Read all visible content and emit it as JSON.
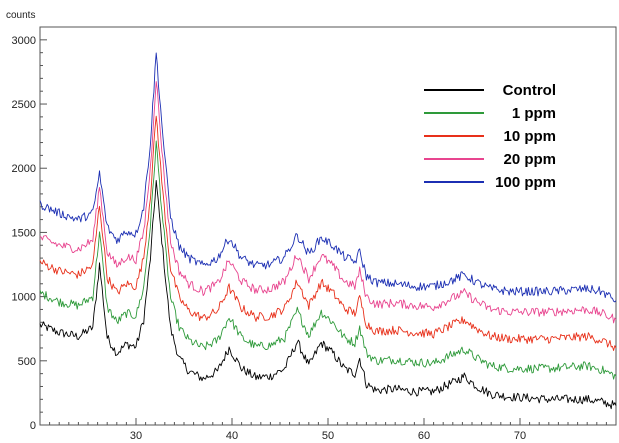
{
  "chart_data": {
    "type": "line",
    "ylabel": "counts",
    "xlabel": "",
    "xlim": [
      20,
      80
    ],
    "ylim": [
      0,
      3100
    ],
    "x_ticks": [
      30,
      40,
      50,
      60,
      70
    ],
    "y_ticks": [
      0,
      500,
      1000,
      1500,
      2000,
      2500,
      3000
    ],
    "grid": false,
    "legend_placement": "top-right",
    "x": [
      20,
      22,
      24,
      25.5,
      26.2,
      27,
      28,
      29,
      30,
      30.8,
      31.5,
      32.1,
      32.8,
      33.6,
      34.5,
      35.5,
      37,
      38.5,
      39.7,
      41,
      42.5,
      44,
      45.5,
      46.8,
      48,
      49.3,
      50.5,
      51.7,
      52.8,
      53.3,
      54,
      55,
      57,
      59,
      61,
      63,
      64.2,
      65.5,
      67,
      69,
      71,
      73,
      75,
      77,
      78.5,
      80
    ],
    "series": [
      {
        "name": "Control",
        "color": "#000000",
        "values": [
          780,
          720,
          690,
          760,
          1250,
          680,
          560,
          630,
          610,
          820,
          1300,
          1900,
          1350,
          750,
          520,
          420,
          360,
          420,
          600,
          440,
          370,
          380,
          440,
          650,
          460,
          640,
          560,
          440,
          400,
          520,
          320,
          270,
          280,
          260,
          260,
          330,
          380,
          300,
          240,
          220,
          210,
          200,
          200,
          200,
          180,
          150
        ]
      },
      {
        "name": "1 ppm",
        "color": "#2e9a3a",
        "values": [
          1030,
          960,
          930,
          1000,
          1500,
          920,
          800,
          870,
          850,
          1070,
          1560,
          2200,
          1580,
          990,
          760,
          660,
          600,
          660,
          840,
          680,
          610,
          620,
          680,
          890,
          700,
          880,
          800,
          680,
          640,
          760,
          560,
          500,
          510,
          490,
          480,
          550,
          590,
          520,
          460,
          440,
          440,
          440,
          450,
          460,
          430,
          380
        ]
      },
      {
        "name": "10 ppm",
        "color": "#e8301a",
        "values": [
          1270,
          1200,
          1170,
          1240,
          1720,
          1150,
          1030,
          1100,
          1080,
          1300,
          1790,
          2420,
          1800,
          1220,
          990,
          890,
          830,
          890,
          1070,
          910,
          840,
          850,
          910,
          1120,
          930,
          1110,
          1030,
          910,
          870,
          990,
          790,
          730,
          740,
          720,
          710,
          780,
          820,
          750,
          690,
          670,
          670,
          670,
          680,
          690,
          660,
          600
        ]
      },
      {
        "name": "20 ppm",
        "color": "#e8458f",
        "values": [
          1460,
          1400,
          1370,
          1440,
          1860,
          1350,
          1240,
          1310,
          1290,
          1500,
          2000,
          2700,
          2050,
          1430,
          1200,
          1100,
          1040,
          1100,
          1280,
          1120,
          1050,
          1060,
          1120,
          1330,
          1140,
          1320,
          1240,
          1120,
          1080,
          1200,
          1000,
          940,
          950,
          930,
          920,
          990,
          1030,
          960,
          900,
          880,
          880,
          880,
          890,
          900,
          870,
          820
        ]
      },
      {
        "name": "100 ppm",
        "color": "#1c2fb3",
        "values": [
          1720,
          1650,
          1600,
          1650,
          1960,
          1540,
          1440,
          1510,
          1490,
          1700,
          2200,
          2900,
          2250,
          1620,
          1390,
          1300,
          1240,
          1300,
          1460,
          1300,
          1240,
          1250,
          1310,
          1480,
          1330,
          1460,
          1400,
          1310,
          1270,
          1350,
          1160,
          1110,
          1100,
          1080,
          1080,
          1130,
          1170,
          1110,
          1060,
          1040,
          1040,
          1040,
          1050,
          1060,
          1040,
          970
        ]
      }
    ]
  }
}
